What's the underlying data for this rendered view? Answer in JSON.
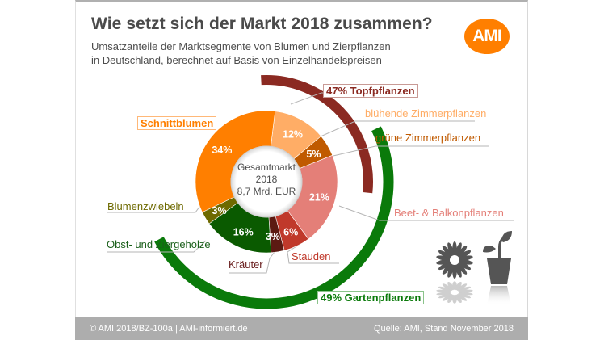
{
  "header": {
    "title": "Wie setzt sich der Markt 2018 zusammen?",
    "subtitle_line1": "Umsatzanteile der Marktsegmente von Blumen und Zierpflanzen",
    "subtitle_line2": "in Deutschland, berechnet auf Basis von Einzelhandelspreisen",
    "logo": "AMI"
  },
  "center": {
    "line1": "Gesamtmarkt",
    "line2": "2018",
    "line3": "8,7 Mrd. EUR"
  },
  "footer": {
    "left": "© AMI 2018/BZ-100a | AMI-informiert.de",
    "right": "Quelle: AMI, Stand November 2018"
  },
  "icons": [
    "flower-icon",
    "potted-plant-icon"
  ],
  "chart_data": {
    "type": "pie",
    "subtype": "donut-with-group-arcs",
    "title": "Wie setzt sich der Markt 2018 zusammen?",
    "total": "8,7 Mrd. EUR",
    "unit": "%",
    "segments": [
      {
        "name": "blühende Zimmerpflanzen",
        "value": 12,
        "label": "12%",
        "color": "#ffad66",
        "group": "Topfpflanzen"
      },
      {
        "name": "grüne Zimmerpflanzen",
        "value": 5,
        "label": "5%",
        "color": "#c05a00",
        "group": "Topfpflanzen"
      },
      {
        "name": "Beet- & Balkonpflanzen",
        "value": 21,
        "label": "21%",
        "color": "#e47f78",
        "group": "Gartenpflanzen"
      },
      {
        "name": "Stauden",
        "value": 6,
        "label": "6%",
        "color": "#c0392b",
        "group": "Gartenpflanzen"
      },
      {
        "name": "Kräuter",
        "value": 3,
        "label": "3%",
        "color": "#5c1a12",
        "group": "Gartenpflanzen"
      },
      {
        "name": "Obst- und Ziergehölze",
        "value": 16,
        "label": "16%",
        "color": "#0a5a00",
        "group": "Gartenpflanzen"
      },
      {
        "name": "Blumenzwiebeln",
        "value": 3,
        "label": "3%",
        "color": "#6e6a00",
        "group": "none"
      },
      {
        "name": "Schnittblumen",
        "value": 34,
        "label": "34%",
        "color": "#ff7f00",
        "group": "none"
      }
    ],
    "groups": [
      {
        "name": "Topfpflanzen",
        "value": 47,
        "label": "47% Topfpflanzen",
        "color": "#8b2a22"
      },
      {
        "name": "Gartenpflanzen",
        "value": 49,
        "label": "49% Gartenpflanzen",
        "color": "#0a7a0a"
      }
    ],
    "label_colors": {
      "Schnittblumen": "#ff7f00",
      "blühende Zimmerpflanzen": "#ffad66",
      "grüne Zimmerpflanzen": "#c05a00",
      "Beet- & Balkonpflanzen": "#e47f78",
      "Stauden": "#c0392b",
      "Kräuter": "#6b2020",
      "Obst- und Ziergehölze": "#1a5f1a",
      "Blumenzwiebeln": "#6e6a00"
    }
  }
}
